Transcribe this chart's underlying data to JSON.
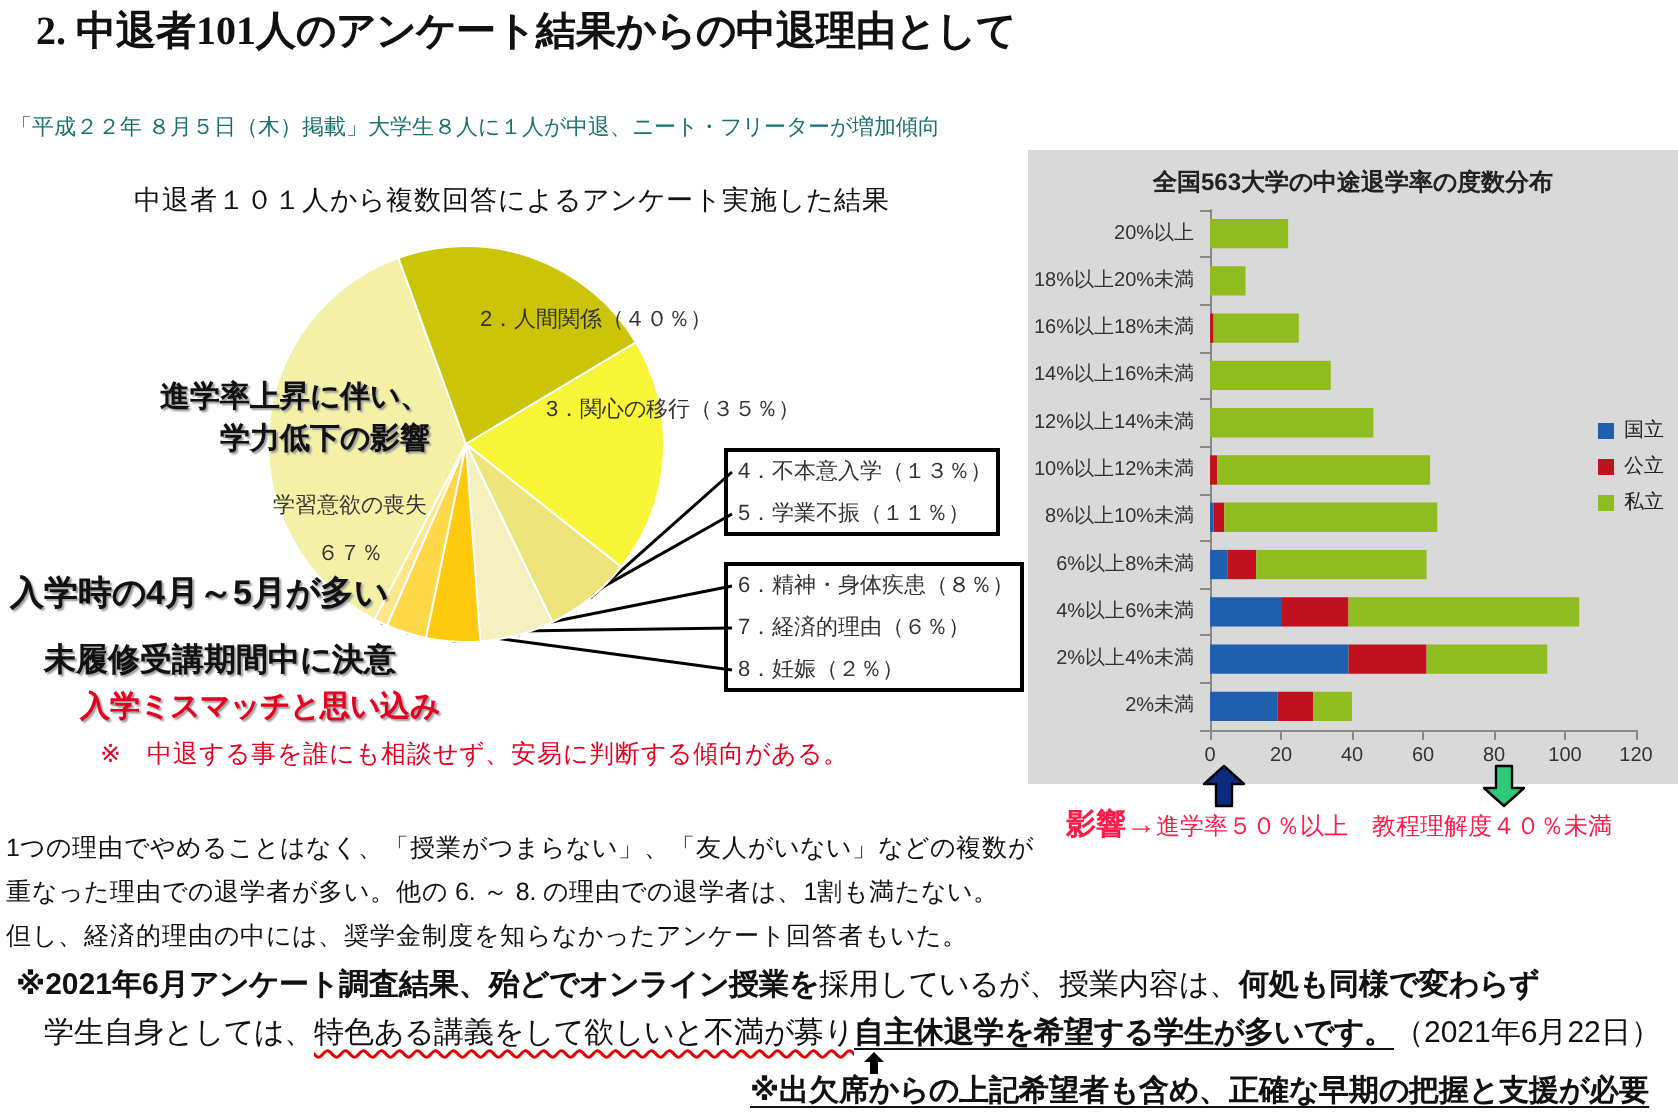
{
  "chart_data": [
    {
      "type": "pie",
      "title": "中退者１０１人から複数回答によるアンケート実施した結果",
      "categories": [
        "学習意欲の喪失",
        "2．人間関係",
        "3．関心の移行",
        "4．不本意入学",
        "5．学業不振",
        "6．精神・身体疾患",
        "7．経済的理由",
        "8．妊娠"
      ],
      "values": [
        67,
        40,
        35,
        13,
        11,
        8,
        6,
        2
      ],
      "value_labels": [
        "６７％",
        "（４０％）",
        "（３５％）",
        "（１３％）",
        "（１１％）",
        "（８％）",
        "（６％）",
        "（２％）"
      ],
      "colors": [
        "#f4f1a6",
        "#cbc408",
        "#f7f536",
        "#eee37a",
        "#f4f0c0",
        "#ffc90e",
        "#ffd84a",
        "#ffe68a"
      ],
      "annotations": [
        "2. 中退者101人のアンケート結果からの中退理由として",
        "「平成２２年 ８月５日（木）掲載」大学生８人に１人が中退、ニート・フリーターが増加傾向",
        "進学率上昇に伴い、",
        "学力低下の影響",
        "入学時の4月～5月が多い",
        "未履修受講期間中に決意",
        "入学ミスマッチと思い込み",
        "※　中退する事を誰にも相談せず、安易に判断する傾向がある。",
        "1つの理由でやめることはなく、「授業がつまらない」、「友人がいない」などの複数が",
        "重なった理由での退学者が多い。他の 6. ～ 8. の理由での退学者は、1割も満たない。",
        "但し、経済的理由の中には、奨学金制度を知らなかったアンケート回答者もいた。",
        "※2021年6月アンケート調査結果、殆どでオンライン授業を",
        "採用しているが、授業内容は、",
        "何処も同様で変わらず",
        "学生自身としては、",
        "特色ある講義をして欲しいと不満が募り",
        "自主休退学を希望する学生が多いです。",
        "（2021年6月22日）",
        "※出欠席からの上記希望者も含め、正確な早期の把握と支援が必要"
      ]
    },
    {
      "type": "bar",
      "orientation": "horizontal",
      "stacked": true,
      "title": "全国563大学の中途退学率の度数分布",
      "categories": [
        "20%以上",
        "18%以上20%未満",
        "16%以上18%未満",
        "14%以上16%未満",
        "12%以上14%未満",
        "10%以上12%未満",
        "8%以上10%未満",
        "6%以上8%未満",
        "4%以上6%未満",
        "2%以上4%未満",
        "2%未満"
      ],
      "series": [
        {
          "name": "国立",
          "color": "#1f5fb0",
          "values": [
            0,
            0,
            0,
            0,
            0,
            0,
            1,
            5,
            20,
            39,
            19
          ]
        },
        {
          "name": "公立",
          "color": "#c0111f",
          "values": [
            0,
            0,
            1,
            0,
            0,
            2,
            3,
            8,
            19,
            22,
            10
          ]
        },
        {
          "name": "私立",
          "color": "#8fbc1e",
          "values": [
            22,
            10,
            24,
            34,
            46,
            60,
            60,
            48,
            65,
            34,
            11
          ]
        }
      ],
      "xlim": [
        0,
        120
      ],
      "xticks": [
        0,
        20,
        40,
        60,
        80,
        100,
        120
      ],
      "legend": "right",
      "annotations": [
        "影響→",
        "進学率５０％以上　教程理解度４０％未満"
      ]
    }
  ]
}
